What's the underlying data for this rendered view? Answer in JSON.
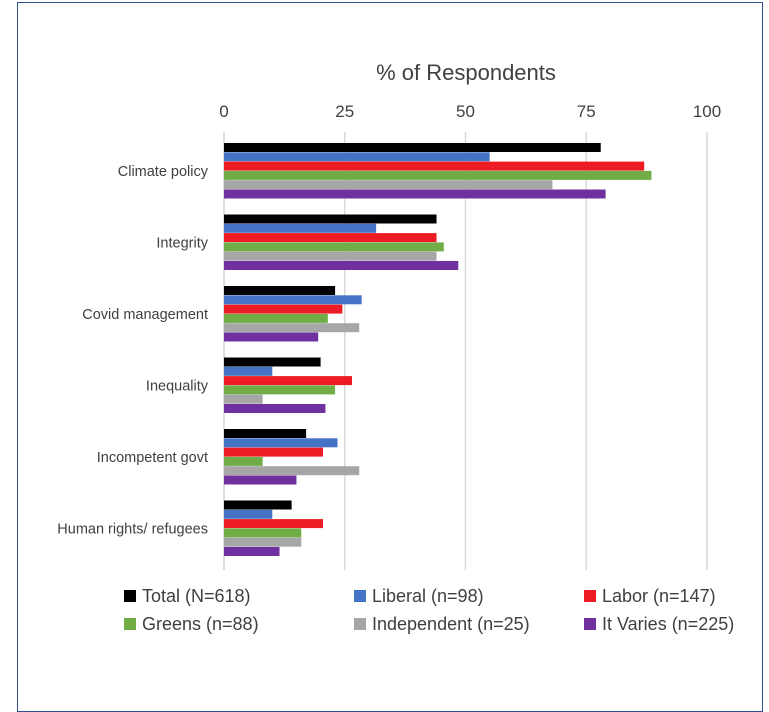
{
  "chart_data": {
    "type": "bar",
    "orientation": "horizontal",
    "title": "",
    "xlabel": "% of Respondents",
    "ylabel": "",
    "xlim": [
      0,
      100
    ],
    "xticks": [
      0,
      25,
      50,
      75,
      100
    ],
    "grid": "vertical",
    "legend_position": "bottom",
    "categories": [
      "Climate policy",
      "Integrity",
      "Covid management",
      "Inequality",
      "Incompetent govt",
      "Human rights/ refugees"
    ],
    "series": [
      {
        "name": "Total (N=618)",
        "color": "#000000",
        "values": [
          78,
          44,
          23,
          20,
          17,
          14
        ]
      },
      {
        "name": "Liberal (n=98)",
        "color": "#4472c4",
        "values": [
          55,
          31.5,
          28.5,
          10,
          23.5,
          10
        ]
      },
      {
        "name": "Labor (n=147)",
        "color": "#ed1c24",
        "values": [
          87,
          44,
          24.5,
          26.5,
          20.5,
          20.5
        ]
      },
      {
        "name": "Greens (n=88)",
        "color": "#70ad47",
        "values": [
          88.5,
          45.5,
          21.5,
          23,
          8,
          16
        ]
      },
      {
        "name": "Independent (n=25)",
        "color": "#a6a6a6",
        "values": [
          68,
          44,
          28,
          8,
          28,
          16
        ]
      },
      {
        "name": "It Varies (n=225)",
        "color": "#7030a0",
        "values": [
          79,
          48.5,
          19.5,
          21,
          15,
          11.5
        ]
      }
    ]
  }
}
